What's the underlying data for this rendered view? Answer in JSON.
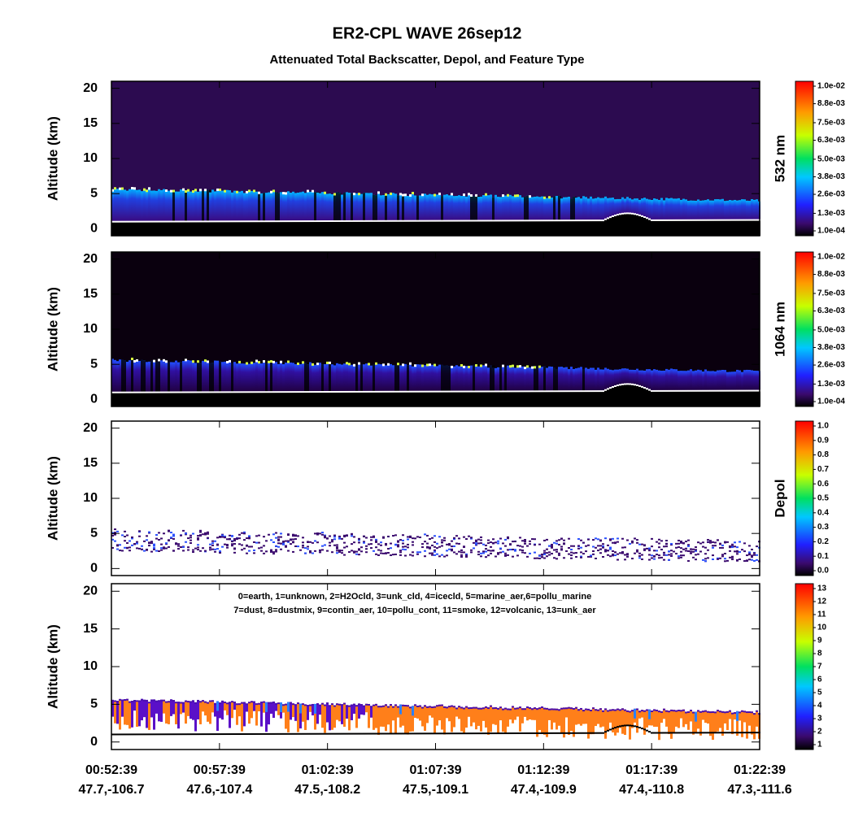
{
  "chart_data": {
    "type": "curtain",
    "title": "ER2-CPL WAVE 26sep12",
    "subtitle": "Attenuated Total Backscatter, Depol, and Feature Type",
    "categories": [
      "00:52:39",
      "00:57:39",
      "01:02:39",
      "01:07:39",
      "01:12:39",
      "01:17:39",
      "01:22:39"
    ],
    "positions": [
      "47.7,-106.7",
      "47.6,-107.4",
      "47.5,-108.2",
      "47.5,-109.1",
      "47.4,-109.9",
      "47.4,-110.8",
      "47.3,-111.6"
    ],
    "panels": [
      {
        "ylabel": "Altitude (km)",
        "ylim": [
          -1,
          21
        ],
        "yticks": [
          0,
          5,
          10,
          15,
          20
        ],
        "colorbar_label": "532 nm",
        "clim": [
          0.0001,
          0.01
        ],
        "cticks": [
          {
            "value": 0.0001,
            "label": "1.0e-04"
          },
          {
            "value": 0.0013,
            "label": "1.3e-03"
          },
          {
            "value": 0.0026,
            "label": "2.6e-03"
          },
          {
            "value": 0.0038,
            "label": "3.8e-03"
          },
          {
            "value": 0.005,
            "label": "5.0e-03"
          },
          {
            "value": 0.0063,
            "label": "6.3e-03"
          },
          {
            "value": 0.0075,
            "label": "7.5e-03"
          },
          {
            "value": 0.0088,
            "label": "8.8e-03"
          },
          {
            "value": 0.01,
            "label": "1.0e-02"
          }
        ]
      },
      {
        "ylabel": "Altitude (km)",
        "ylim": [
          -1,
          21
        ],
        "yticks": [
          0,
          5,
          10,
          15,
          20
        ],
        "colorbar_label": "1064 nm",
        "clim": [
          0.0001,
          0.01
        ],
        "cticks": [
          {
            "value": 0.0001,
            "label": "1.0e-04"
          },
          {
            "value": 0.0013,
            "label": "1.3e-03"
          },
          {
            "value": 0.0026,
            "label": "2.6e-03"
          },
          {
            "value": 0.0038,
            "label": "3.8e-03"
          },
          {
            "value": 0.005,
            "label": "5.0e-03"
          },
          {
            "value": 0.0063,
            "label": "6.3e-03"
          },
          {
            "value": 0.0075,
            "label": "7.5e-03"
          },
          {
            "value": 0.0088,
            "label": "8.8e-03"
          },
          {
            "value": 0.01,
            "label": "1.0e-02"
          }
        ]
      },
      {
        "ylabel": "Altitude (km)",
        "ylim": [
          -1,
          21
        ],
        "yticks": [
          0,
          5,
          10,
          15,
          20
        ],
        "colorbar_label": "Depol",
        "clim": [
          0,
          1
        ],
        "cticks": [
          {
            "value": 0,
            "label": "0.0"
          },
          0.1,
          0.2,
          0.3,
          0.4,
          0.5,
          0.6,
          0.7,
          0.8,
          0.9,
          {
            "value": 1,
            "label": "1.0"
          }
        ]
      },
      {
        "ylabel": "Altitude (km)",
        "ylim": [
          -1,
          21
        ],
        "yticks": [
          0,
          5,
          10,
          15,
          20
        ],
        "clim": [
          1,
          13
        ],
        "cticks": [
          1,
          2,
          3,
          4,
          5,
          6,
          7,
          8,
          9,
          10,
          11,
          12,
          13
        ],
        "legend": [
          "0=earth, 1=unknown, 2=H2Ocld, 3=unk_cld, 4=icecld, 5=marine_aer,6=pollu_marine",
          "7=dust, 8=dustmix, 9=contin_aer, 10=pollu_cont, 11=smoke, 12=volcanic, 13=unk_aer"
        ]
      }
    ]
  }
}
